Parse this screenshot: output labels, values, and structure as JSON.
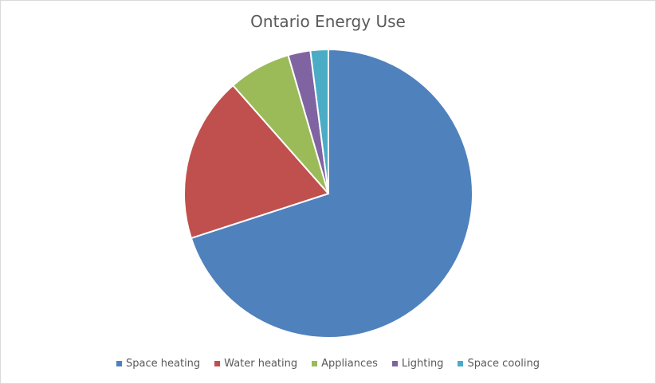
{
  "chart_data": {
    "type": "pie",
    "title": "Ontario Energy Use",
    "categories": [
      "Space heating",
      "Water heating",
      "Appliances",
      "Lighting",
      "Space cooling"
    ],
    "values": [
      70,
      18.5,
      7,
      2.5,
      2
    ],
    "colors": [
      "#4f81bd",
      "#c0504d",
      "#9bbb59",
      "#8064a2",
      "#4bacc6"
    ],
    "legend_position": "bottom"
  }
}
